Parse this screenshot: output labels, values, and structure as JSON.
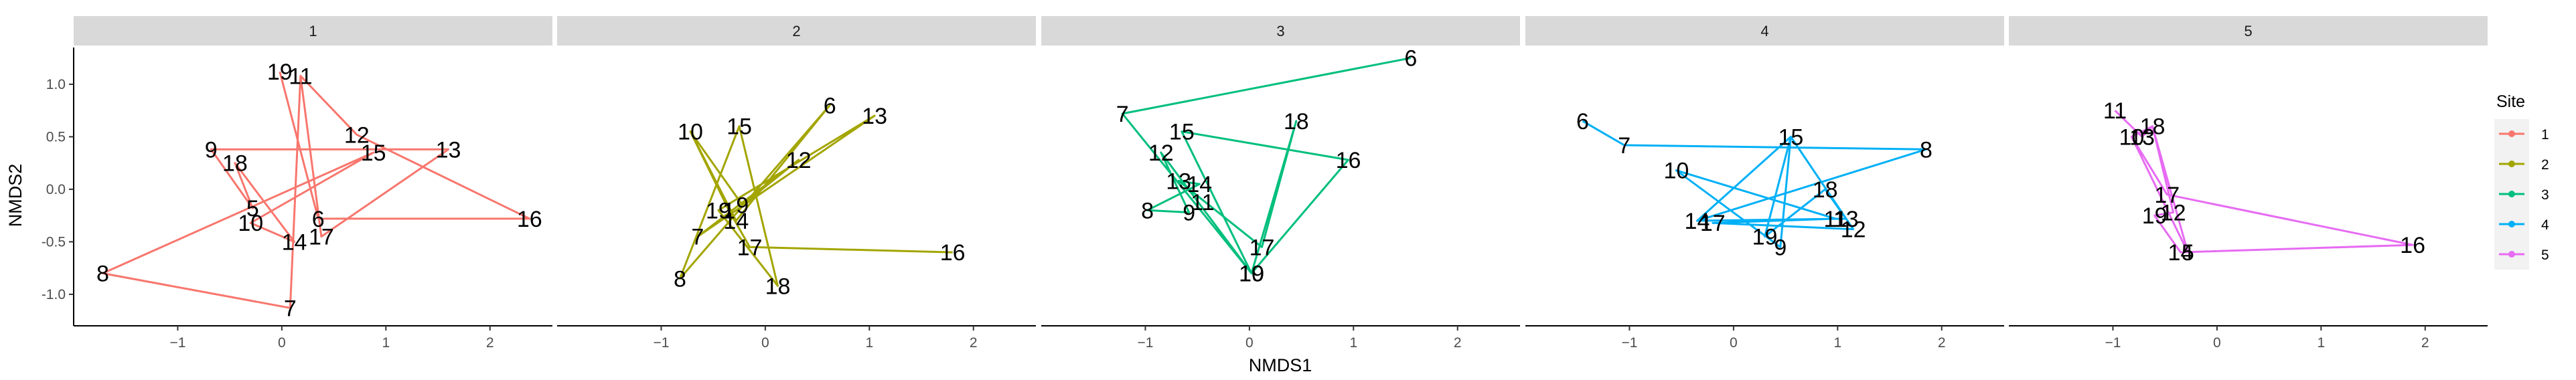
{
  "chart_data": {
    "type": "line",
    "xlabel": "NMDS1",
    "ylabel": "NMDS2",
    "xlim": [
      -2.0,
      2.6
    ],
    "ylim": [
      -1.3,
      1.35
    ],
    "xticks": [
      -1,
      0,
      1,
      2
    ],
    "yticks": [
      -1.0,
      -0.5,
      0.0,
      0.5,
      1.0
    ],
    "x_tick_labels": [
      "−1",
      "0",
      "1",
      "2"
    ],
    "y_tick_labels": [
      "-1.0",
      "-0.5",
      "0.0",
      "0.5",
      "1.0"
    ],
    "grid": false,
    "legend": {
      "title": "Site",
      "position": "right",
      "entries": [
        "1",
        "2",
        "3",
        "4",
        "5"
      ]
    },
    "panels": [
      {
        "strip": "1",
        "color": "#F8766D",
        "points": [
          {
            "label": "19",
            "x": -0.02,
            "y": 1.12
          },
          {
            "label": "11",
            "x": 0.18,
            "y": 1.08
          },
          {
            "label": "12",
            "x": 0.72,
            "y": 0.52
          },
          {
            "label": "15",
            "x": 0.88,
            "y": 0.35
          },
          {
            "label": "13",
            "x": 1.6,
            "y": 0.38
          },
          {
            "label": "9",
            "x": -0.68,
            "y": 0.38
          },
          {
            "label": "18",
            "x": -0.45,
            "y": 0.25
          },
          {
            "label": "5",
            "x": -0.28,
            "y": -0.18
          },
          {
            "label": "10",
            "x": -0.3,
            "y": -0.32
          },
          {
            "label": "6",
            "x": 0.35,
            "y": -0.28
          },
          {
            "label": "14",
            "x": 0.12,
            "y": -0.5
          },
          {
            "label": "17",
            "x": 0.38,
            "y": -0.45
          },
          {
            "label": "16",
            "x": 2.38,
            "y": -0.28
          },
          {
            "label": "8",
            "x": -1.72,
            "y": -0.8
          },
          {
            "label": "7",
            "x": 0.08,
            "y": -1.13
          }
        ],
        "path": [
          "19",
          "6",
          "16",
          "12",
          "11",
          "17",
          "13",
          "9",
          "5",
          "18",
          "14",
          "10",
          "15",
          "8",
          "7",
          "11"
        ]
      },
      {
        "strip": "2",
        "color": "#A3A500",
        "points": [
          {
            "label": "10",
            "x": -0.72,
            "y": 0.55
          },
          {
            "label": "15",
            "x": -0.25,
            "y": 0.6
          },
          {
            "label": "6",
            "x": 0.62,
            "y": 0.8
          },
          {
            "label": "13",
            "x": 1.05,
            "y": 0.7
          },
          {
            "label": "12",
            "x": 0.32,
            "y": 0.28
          },
          {
            "label": "19",
            "x": -0.45,
            "y": -0.2
          },
          {
            "label": "1",
            "x": -0.35,
            "y": -0.2
          },
          {
            "label": "9",
            "x": -0.22,
            "y": -0.15
          },
          {
            "label": "14",
            "x": -0.28,
            "y": -0.3
          },
          {
            "label": "7",
            "x": -0.65,
            "y": -0.45
          },
          {
            "label": "17",
            "x": -0.15,
            "y": -0.55
          },
          {
            "label": "16",
            "x": 1.8,
            "y": -0.6
          },
          {
            "label": "8",
            "x": -0.82,
            "y": -0.85
          },
          {
            "label": "18",
            "x": 0.12,
            "y": -0.92
          }
        ],
        "path": [
          "10",
          "14",
          "6",
          "8",
          "15",
          "18",
          "19",
          "13",
          "7",
          "12",
          "9",
          "10",
          "1",
          "17",
          "16"
        ]
      },
      {
        "strip": "3",
        "color": "#00BF7D",
        "points": [
          {
            "label": "6",
            "x": 1.55,
            "y": 1.25
          },
          {
            "label": "7",
            "x": -1.22,
            "y": 0.72
          },
          {
            "label": "15",
            "x": -0.65,
            "y": 0.55
          },
          {
            "label": "18",
            "x": 0.45,
            "y": 0.65
          },
          {
            "label": "16",
            "x": 0.95,
            "y": 0.28
          },
          {
            "label": "12",
            "x": -0.85,
            "y": 0.35
          },
          {
            "label": "13",
            "x": -0.68,
            "y": 0.08
          },
          {
            "label": "14",
            "x": -0.48,
            "y": 0.05
          },
          {
            "label": "11",
            "x": -0.45,
            "y": -0.12
          },
          {
            "label": "8",
            "x": -0.98,
            "y": -0.2
          },
          {
            "label": "9",
            "x": -0.58,
            "y": -0.22
          },
          {
            "label": "17",
            "x": 0.12,
            "y": -0.55
          },
          {
            "label": "19",
            "x": 0.02,
            "y": -0.8
          },
          {
            "label": "10",
            "x": 0.02,
            "y": -0.8
          }
        ],
        "path": [
          "6",
          "7",
          "10",
          "15",
          "16",
          "19",
          "12",
          "9",
          "8",
          "14",
          "13",
          "17",
          "18",
          "10"
        ]
      },
      {
        "strip": "4",
        "color": "#00B0F6",
        "points": [
          {
            "label": "6",
            "x": -1.45,
            "y": 0.65
          },
          {
            "label": "7",
            "x": -1.05,
            "y": 0.42
          },
          {
            "label": "15",
            "x": 0.55,
            "y": 0.5
          },
          {
            "label": "8",
            "x": 1.85,
            "y": 0.38
          },
          {
            "label": "10",
            "x": -0.55,
            "y": 0.18
          },
          {
            "label": "18",
            "x": 0.88,
            "y": 0.0
          },
          {
            "label": "14",
            "x": -0.35,
            "y": -0.3
          },
          {
            "label": "17",
            "x": -0.2,
            "y": -0.32
          },
          {
            "label": "11",
            "x": 0.98,
            "y": -0.28
          },
          {
            "label": "13",
            "x": 1.08,
            "y": -0.28
          },
          {
            "label": "12",
            "x": 1.15,
            "y": -0.38
          },
          {
            "label": "19",
            "x": 0.3,
            "y": -0.45
          },
          {
            "label": "9",
            "x": 0.45,
            "y": -0.55
          }
        ],
        "path": [
          "6",
          "7",
          "8",
          "14",
          "15",
          "9",
          "10",
          "11",
          "17",
          "12",
          "15",
          "19",
          "18",
          "13",
          "14"
        ]
      },
      {
        "strip": "5",
        "color": "#E76BF3",
        "points": [
          {
            "label": "11",
            "x": -0.98,
            "y": 0.75
          },
          {
            "label": "18",
            "x": -0.62,
            "y": 0.6
          },
          {
            "label": "10",
            "x": -0.82,
            "y": 0.5
          },
          {
            "label": "13",
            "x": -0.72,
            "y": 0.5
          },
          {
            "label": "17",
            "x": -0.48,
            "y": -0.05
          },
          {
            "label": "19",
            "x": -0.6,
            "y": -0.25
          },
          {
            "label": "12",
            "x": -0.42,
            "y": -0.22
          },
          {
            "label": "16",
            "x": 1.88,
            "y": -0.53
          },
          {
            "label": "14",
            "x": -0.35,
            "y": -0.6
          },
          {
            "label": "5",
            "x": -0.28,
            "y": -0.6
          }
        ],
        "path": [
          "11",
          "13",
          "18",
          "10",
          "17",
          "16",
          "14",
          "19",
          "12",
          "18",
          "5",
          "10"
        ]
      }
    ]
  }
}
